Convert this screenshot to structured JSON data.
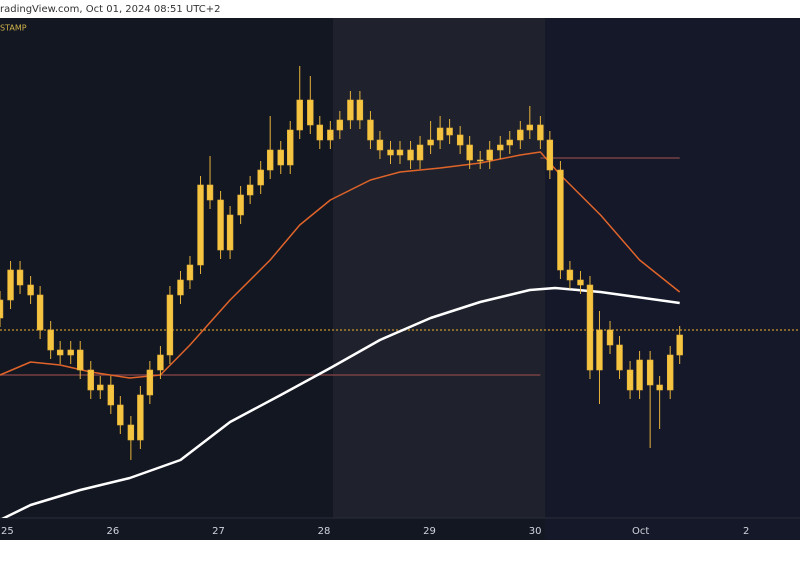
{
  "header": "radingView.com, Oct 01, 2024 08:51 UTC+2",
  "chart_data": {
    "type": "candlestick",
    "source": "STAMP",
    "color": "#f5c542",
    "wick_color": "#e8b33a",
    "x": [
      -0.07,
      0.03,
      0.12,
      0.22,
      0.31,
      0.41,
      0.5,
      0.6,
      0.69,
      0.79,
      0.88,
      0.98,
      1.07,
      1.17,
      1.26,
      1.35,
      1.45,
      1.54,
      1.64,
      1.73,
      1.83,
      1.92,
      2.02,
      2.11,
      2.21,
      2.3,
      2.4,
      2.49,
      2.59,
      2.68,
      2.77,
      2.87,
      2.96,
      3.06,
      3.15,
      3.25,
      3.34,
      3.44,
      3.53,
      3.63,
      3.72,
      3.82,
      3.91,
      4.01,
      4.1,
      4.19,
      4.29,
      4.38,
      4.48,
      4.57,
      4.67,
      4.76,
      4.86,
      4.95,
      5.05,
      5.14,
      5.24,
      5.33,
      5.43,
      5.52,
      5.61,
      5.71,
      5.8,
      5.9,
      5.99,
      6.09,
      6.18,
      6.28,
      6.37
    ],
    "open": [
      40.0,
      43.6,
      49.6,
      46.6,
      44.6,
      37.6,
      33.6,
      32.6,
      33.6,
      29.6,
      25.6,
      26.6,
      22.6,
      18.6,
      15.6,
      24.6,
      29.6,
      32.6,
      44.6,
      47.6,
      50.6,
      66.6,
      63.6,
      53.6,
      60.6,
      64.6,
      66.6,
      69.6,
      73.6,
      70.6,
      77.6,
      83.6,
      78.6,
      75.6,
      77.6,
      79.6,
      83.6,
      79.6,
      75.6,
      73.6,
      72.6,
      73.6,
      71.6,
      74.6,
      75.6,
      78.0,
      76.6,
      74.6,
      71.6,
      71.6,
      73.6,
      74.6,
      75.6,
      77.6,
      78.6,
      75.6,
      69.6,
      49.6,
      47.6,
      46.6,
      29.6,
      37.6,
      34.6,
      29.6,
      25.6,
      31.6,
      26.6,
      25.6,
      32.6
    ],
    "high": [
      45.4,
      51.4,
      51.4,
      48.4,
      46.4,
      39.4,
      35.4,
      35.4,
      35.4,
      31.4,
      28.4,
      28.4,
      24.4,
      20.4,
      26.4,
      31.4,
      34.4,
      46.4,
      49.4,
      52.4,
      68.4,
      72.4,
      65.4,
      62.4,
      66.4,
      68.4,
      71.4,
      80.4,
      75.4,
      79.4,
      90.4,
      88.4,
      80.4,
      79.4,
      81.4,
      85.4,
      85.4,
      81.4,
      77.4,
      75.4,
      75.4,
      75.4,
      76.4,
      79.4,
      80.4,
      79.8,
      78.4,
      76.4,
      73.4,
      75.4,
      76.4,
      77.4,
      79.4,
      82.4,
      80.4,
      77.4,
      71.4,
      51.4,
      49.4,
      48.4,
      41.4,
      39.4,
      36.4,
      31.4,
      33.4,
      33.4,
      28.4,
      34.4,
      38.4
    ],
    "low": [
      38.2,
      41.8,
      44.8,
      42.8,
      35.8,
      31.8,
      30.8,
      30.8,
      27.8,
      23.8,
      23.8,
      20.8,
      16.8,
      11.6,
      13.8,
      22.8,
      27.8,
      30.8,
      42.8,
      45.8,
      48.8,
      61.8,
      51.8,
      51.8,
      58.8,
      62.8,
      64.8,
      67.8,
      68.8,
      68.8,
      75.8,
      76.8,
      73.8,
      73.8,
      75.8,
      77.8,
      77.8,
      73.8,
      71.8,
      70.8,
      70.8,
      69.8,
      69.8,
      72.8,
      73.8,
      74.8,
      72.8,
      69.8,
      69.8,
      69.8,
      71.8,
      72.8,
      73.8,
      75.8,
      73.8,
      67.8,
      47.8,
      45.8,
      44.8,
      27.8,
      22.8,
      32.8,
      27.8,
      23.8,
      23.8,
      14.0,
      17.8,
      23.8,
      30.8
    ],
    "close": [
      43.6,
      49.6,
      46.6,
      44.6,
      37.6,
      33.6,
      32.6,
      33.6,
      29.6,
      25.6,
      26.6,
      22.6,
      18.6,
      15.6,
      24.6,
      29.6,
      32.6,
      44.6,
      47.6,
      50.6,
      66.6,
      63.6,
      53.6,
      60.6,
      64.6,
      66.6,
      69.6,
      73.6,
      70.6,
      77.6,
      83.6,
      78.6,
      75.6,
      77.6,
      79.6,
      83.6,
      79.6,
      75.6,
      73.6,
      72.6,
      73.6,
      71.6,
      74.6,
      75.6,
      78.0,
      76.6,
      74.6,
      71.6,
      71.6,
      73.6,
      74.6,
      75.6,
      77.6,
      78.6,
      75.6,
      69.6,
      49.6,
      47.6,
      46.6,
      29.6,
      37.6,
      34.6,
      29.6,
      25.6,
      31.6,
      26.6,
      25.6,
      32.6,
      36.6
    ],
    "series": [
      {
        "color": "#ffffff",
        "width": 2.5,
        "x": [
          -0.07,
          0.22,
          0.69,
          1.16,
          1.64,
          2.11,
          2.59,
          3.06,
          3.53,
          4.01,
          4.48,
          4.95,
          5.19,
          5.62,
          6.37
        ],
        "values": [
          -0.4,
          2.6,
          5.6,
          8.0,
          11.6,
          19.2,
          24.6,
          30.0,
          35.6,
          40.0,
          43.2,
          45.6,
          46.0,
          45.2,
          43.0
        ]
      },
      {
        "color": "#e0642a",
        "width": 1.5,
        "x": [
          -0.07,
          0.22,
          0.5,
          0.79,
          1.16,
          1.45,
          1.73,
          2.11,
          2.49,
          2.77,
          3.06,
          3.44,
          3.72,
          4.1,
          4.48,
          4.86,
          5.05,
          5.24,
          5.62,
          5.99,
          6.37
        ],
        "values": [
          28.6,
          31.2,
          30.6,
          29.2,
          28.0,
          28.6,
          34.6,
          43.6,
          51.6,
          58.6,
          63.6,
          67.6,
          69.2,
          70.0,
          71.0,
          72.6,
          73.2,
          68.6,
          60.6,
          51.6,
          45.2
        ]
      }
    ],
    "levels": [
      {
        "value": 28.6,
        "x": [
          -0.07,
          5.05
        ],
        "color": "#8a4a4a",
        "dash": false
      },
      {
        "value": 72.0,
        "x": [
          5.05,
          6.37
        ],
        "color": "#8a4a4a",
        "dash": false
      },
      {
        "value": 37.6,
        "x": [
          -0.07,
          7.51
        ],
        "color": "#c8962a",
        "dash": true
      }
    ],
    "xlim": [
      -0.07,
      7.51
    ],
    "ylim": [
      0,
      100
    ],
    "xticks": [
      {
        "value": 0,
        "label": "25"
      },
      {
        "value": 1,
        "label": "26"
      },
      {
        "value": 2,
        "label": "27"
      },
      {
        "value": 3,
        "label": "28"
      },
      {
        "value": 4,
        "label": "29"
      },
      {
        "value": 5,
        "label": "30"
      },
      {
        "value": 6,
        "label": "Oct"
      },
      {
        "value": 7,
        "label": "2"
      }
    ]
  }
}
